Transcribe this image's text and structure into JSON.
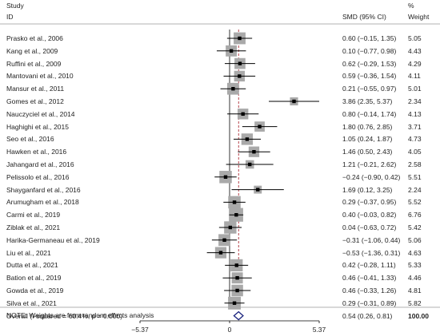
{
  "header": {
    "study_label": "Study",
    "id_label": "ID",
    "effect_label": "SMD (95% CI)",
    "pct_label": "%",
    "weight_label": "Weight"
  },
  "note": "NOTE: Weights are from random effects analysis",
  "chart_data": {
    "type": "forest",
    "xlim": [
      -5.37,
      5.37
    ],
    "xticks": [
      "−5.37",
      "0",
      "5.37"
    ],
    "xtick_values": [
      -5.37,
      0,
      5.37
    ],
    "null_line": 0,
    "pooled_line": 0.54,
    "colors": {
      "line": "#000000",
      "box": "#a9a9a9",
      "pooled_line": "#b0303a",
      "diamond": "#1a237e"
    },
    "studies": [
      {
        "id": "Prasko et al., 2006",
        "smd": 0.6,
        "lo": -0.15,
        "hi": 1.35,
        "ci_text": "0.60 (−0.15, 1.35)",
        "weight": "5.05",
        "w": 5.05
      },
      {
        "id": "Kang et al., 2009",
        "smd": 0.1,
        "lo": -0.77,
        "hi": 0.98,
        "ci_text": "0.10 (−0.77, 0.98)",
        "weight": "4.43",
        "w": 4.43
      },
      {
        "id": "Ruffini et al., 2009",
        "smd": 0.62,
        "lo": -0.29,
        "hi": 1.53,
        "ci_text": "0.62 (−0.29, 1.53)",
        "weight": "4.29",
        "w": 4.29
      },
      {
        "id": "Mantovani et al., 2010",
        "smd": 0.59,
        "lo": -0.36,
        "hi": 1.54,
        "ci_text": "0.59 (−0.36, 1.54)",
        "weight": "4.11",
        "w": 4.11
      },
      {
        "id": "Mansur et al., 2011",
        "smd": 0.21,
        "lo": -0.55,
        "hi": 0.97,
        "ci_text": "0.21 (−0.55, 0.97)",
        "weight": "5.01",
        "w": 5.01
      },
      {
        "id": "Gomes et al., 2012",
        "smd": 3.86,
        "lo": 2.35,
        "hi": 5.37,
        "ci_text": "3.86 (2.35, 5.37)",
        "weight": "2.34",
        "w": 2.34
      },
      {
        "id": "Nauczyciel et al., 2014",
        "smd": 0.8,
        "lo": -0.14,
        "hi": 1.74,
        "ci_text": "0.80 (−0.14, 1.74)",
        "weight": "4.13",
        "w": 4.13
      },
      {
        "id": "Haghighi et al., 2015",
        "smd": 1.8,
        "lo": 0.76,
        "hi": 2.85,
        "ci_text": "1.80 (0.76, 2.85)",
        "weight": "3.71",
        "w": 3.71
      },
      {
        "id": "Seo et al., 2016",
        "smd": 1.05,
        "lo": 0.24,
        "hi": 1.87,
        "ci_text": "1.05 (0.24, 1.87)",
        "weight": "4.73",
        "w": 4.73
      },
      {
        "id": "Hawken et al., 2016",
        "smd": 1.46,
        "lo": 0.5,
        "hi": 2.43,
        "ci_text": "1.46 (0.50, 2.43)",
        "weight": "4.05",
        "w": 4.05
      },
      {
        "id": "Jahangard et al., 2016",
        "smd": 1.21,
        "lo": -0.21,
        "hi": 2.62,
        "ci_text": "1.21 (−0.21, 2.62)",
        "weight": "2.58",
        "w": 2.58
      },
      {
        "id": "Pelissolo et al., 2016",
        "smd": -0.24,
        "lo": -0.9,
        "hi": 0.42,
        "ci_text": "−0.24 (−0.90, 0.42)",
        "weight": "5.51",
        "w": 5.51
      },
      {
        "id": "Shayganfard et al., 2016",
        "smd": 1.69,
        "lo": 0.12,
        "hi": 3.25,
        "ci_text": "1.69 (0.12, 3.25)",
        "weight": "2.24",
        "w": 2.24
      },
      {
        "id": "Arumugham et al., 2018",
        "smd": 0.29,
        "lo": -0.37,
        "hi": 0.95,
        "ci_text": "0.29 (−0.37, 0.95)",
        "weight": "5.52",
        "w": 5.52
      },
      {
        "id": "Carmi et al., 2019",
        "smd": 0.4,
        "lo": -0.03,
        "hi": 0.82,
        "ci_text": "0.40 (−0.03, 0.82)",
        "weight": "6.76",
        "w": 6.76
      },
      {
        "id": "Ziblak et al., 2021",
        "smd": 0.04,
        "lo": -0.63,
        "hi": 0.72,
        "ci_text": "0.04 (−0.63, 0.72)",
        "weight": "5.42",
        "w": 5.42
      },
      {
        "id": "Harika-Germaneau et al., 2019",
        "smd": -0.31,
        "lo": -1.06,
        "hi": 0.44,
        "ci_text": "−0.31 (−1.06, 0.44)",
        "weight": "5.06",
        "w": 5.06
      },
      {
        "id": "Liu et al., 2021",
        "smd": -0.53,
        "lo": -1.36,
        "hi": 0.31,
        "ci_text": "−0.53 (−1.36, 0.31)",
        "weight": "4.63",
        "w": 4.63
      },
      {
        "id": "Dutta et al., 2021",
        "smd": 0.42,
        "lo": -0.28,
        "hi": 1.11,
        "ci_text": "0.42 (−0.28, 1.11)",
        "weight": "5.33",
        "w": 5.33
      },
      {
        "id": "Bation et al., 2019",
        "smd": 0.46,
        "lo": -0.41,
        "hi": 1.33,
        "ci_text": "0.46 (−0.41, 1.33)",
        "weight": "4.46",
        "w": 4.46
      },
      {
        "id": "Gowda et al., 2019",
        "smd": 0.46,
        "lo": -0.33,
        "hi": 1.26,
        "ci_text": "0.46 (−0.33, 1.26)",
        "weight": "4.81",
        "w": 4.81
      },
      {
        "id": "Silva et al., 2021",
        "smd": 0.29,
        "lo": -0.31,
        "hi": 0.89,
        "ci_text": "0.29 (−0.31, 0.89)",
        "weight": "5.82",
        "w": 5.82
      }
    ],
    "overall": {
      "label": "Overall  (I-squared = 60.4%, p = 0.000)",
      "smd": 0.54,
      "lo": 0.26,
      "hi": 0.81,
      "ci_text": "0.54 (0.26, 0.81)",
      "weight": "100.00"
    }
  }
}
